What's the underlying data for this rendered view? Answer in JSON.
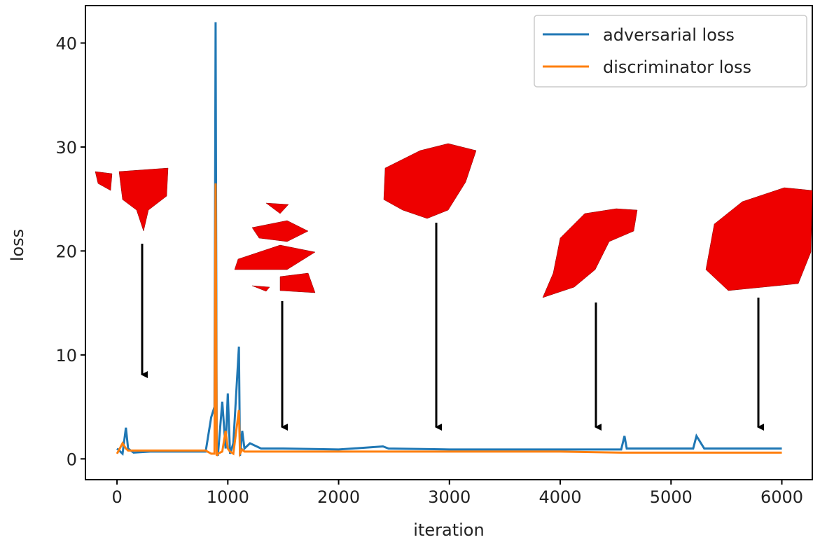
{
  "chart_data": {
    "type": "line",
    "x_label": "iteration",
    "y_label": "loss",
    "x": [
      0,
      50,
      80,
      100,
      150,
      300,
      500,
      800,
      850,
      880,
      890,
      900,
      910,
      950,
      980,
      1000,
      1020,
      1050,
      1100,
      1110,
      1130,
      1150,
      1200,
      1300,
      1500,
      2000,
      2400,
      2450,
      3000,
      4000,
      4550,
      4580,
      4600,
      4700,
      5200,
      5230,
      5300,
      6000
    ],
    "series": [
      {
        "name": "adversarial loss",
        "color": "#1f77b4",
        "values": [
          1,
          0.5,
          3,
          1,
          0.6,
          0.7,
          0.7,
          0.7,
          4,
          5,
          42,
          1,
          0.3,
          5.5,
          1,
          6.3,
          0.5,
          1.5,
          10.8,
          0.3,
          2.7,
          1,
          1.5,
          1,
          1,
          0.9,
          1.2,
          1,
          0.9,
          0.9,
          0.9,
          2.2,
          1,
          1,
          1,
          2.2,
          1,
          1
        ]
      },
      {
        "name": "discriminator loss",
        "color": "#ff7f0e",
        "values": [
          0.5,
          1.5,
          1,
          0.8,
          0.8,
          0.8,
          0.8,
          0.8,
          0.5,
          0.5,
          26.5,
          0.3,
          0.5,
          0.7,
          2.7,
          1,
          0.7,
          0.5,
          4.7,
          0.5,
          0.9,
          0.7,
          0.7,
          0.7,
          0.7,
          0.7,
          0.7,
          0.7,
          0.7,
          0.7,
          0.6,
          0.6,
          0.6,
          0.6,
          0.6,
          0.6,
          0.6,
          0.6
        ]
      }
    ],
    "xlim": [
      -285,
      6275
    ],
    "ylim": [
      -2,
      43.6
    ],
    "xticks": [
      0,
      1000,
      2000,
      3000,
      4000,
      5000,
      6000
    ],
    "yticks": [
      0,
      10,
      20,
      30,
      40
    ],
    "legend": "upper right"
  }
}
